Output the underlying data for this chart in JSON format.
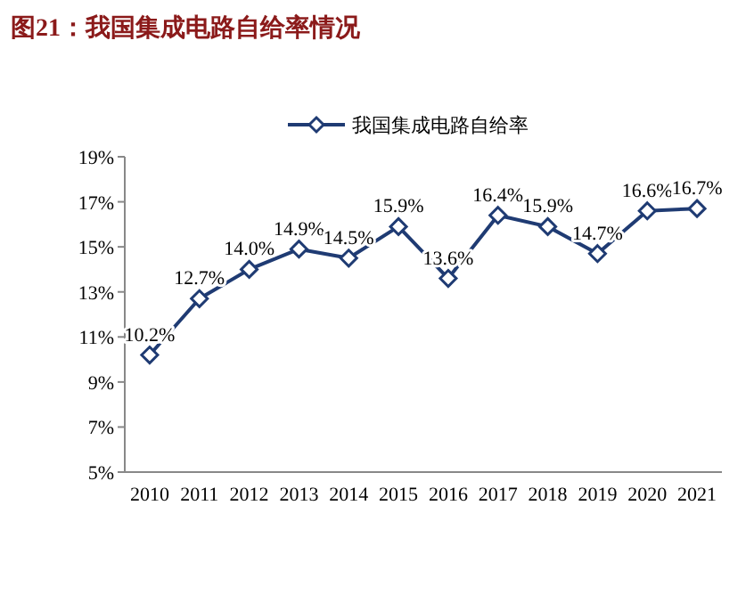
{
  "chart_data": {
    "type": "line",
    "title": "图21：我国集成电路自给率情况",
    "categories": [
      "2010",
      "2011",
      "2012",
      "2013",
      "2014",
      "2015",
      "2016",
      "2017",
      "2018",
      "2019",
      "2020",
      "2021"
    ],
    "series": [
      {
        "name": "我国集成电路自给率",
        "color": "#1f3b73",
        "values": [
          10.2,
          12.7,
          14.0,
          14.9,
          14.5,
          15.9,
          13.6,
          16.4,
          15.9,
          14.7,
          16.6,
          16.7
        ],
        "value_labels": [
          "10.2%",
          "12.7%",
          "14.0%",
          "14.9%",
          "14.5%",
          "15.9%",
          "13.6%",
          "16.4%",
          "15.9%",
          "14.7%",
          "16.6%",
          "16.7%"
        ]
      }
    ],
    "ylim": [
      5,
      19
    ],
    "yticks": [
      {
        "value": 5,
        "label": "5%"
      },
      {
        "value": 7,
        "label": "7%"
      },
      {
        "value": 9,
        "label": "9%"
      },
      {
        "value": 11,
        "label": "11%"
      },
      {
        "value": 13,
        "label": "13%"
      },
      {
        "value": 15,
        "label": "15%"
      },
      {
        "value": 17,
        "label": "17%"
      },
      {
        "value": 19,
        "label": "19%"
      }
    ],
    "grid": false,
    "legend": "top",
    "marker": "diamond",
    "line_style": "solid"
  }
}
